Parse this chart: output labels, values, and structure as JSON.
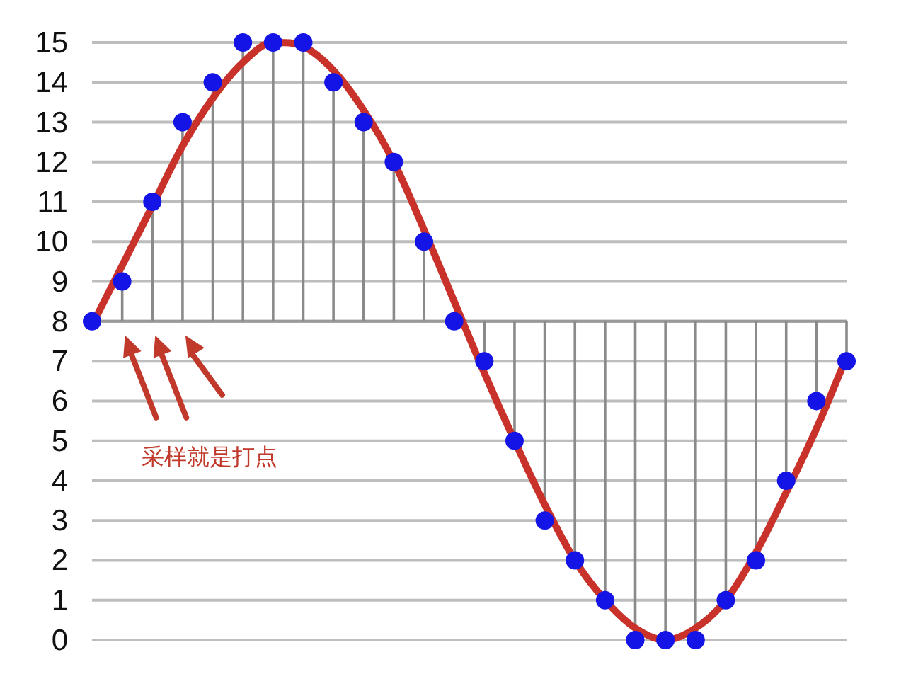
{
  "chart_data": {
    "type": "lollipop",
    "categories": [
      null,
      null,
      null,
      null,
      null,
      null,
      null,
      null,
      null,
      null,
      null,
      null,
      null,
      null,
      null,
      null,
      null,
      null,
      null,
      null,
      null,
      null,
      null,
      null,
      null,
      null
    ],
    "ylim": [
      0,
      15
    ],
    "yticks": [
      0,
      1,
      2,
      3,
      4,
      5,
      6,
      7,
      8,
      9,
      10,
      11,
      12,
      13,
      14,
      15
    ],
    "tick_labels": "y",
    "grid": "y",
    "ref_lines": [
      {
        "axis": "y",
        "value": 8,
        "color": "#999999"
      }
    ],
    "annotations": [
      "采样就是打点"
    ],
    "series": [
      {
        "type": "line",
        "color": "#c8322a",
        "values": [
          7.9,
          9.4,
          10.9,
          12.4,
          13.6,
          14.5,
          15,
          14.9,
          14.3,
          13.3,
          12,
          10.3,
          8.5,
          6.7,
          5,
          3.4,
          2,
          1,
          0.3,
          0,
          0.3,
          1,
          2.2,
          3.7,
          5.3,
          7.1
        ]
      },
      {
        "color": "#1414e6",
        "marker": "circle",
        "values": [
          8,
          9,
          11,
          13,
          14,
          15,
          15,
          15,
          14,
          13,
          12,
          10,
          8,
          7,
          5,
          3,
          2,
          1,
          0,
          0,
          0,
          1,
          2,
          4,
          6,
          7
        ],
        "errors": [
          [
            8,
            8
          ],
          [
            8,
            9
          ],
          [
            8,
            11
          ],
          [
            8,
            13
          ],
          [
            8,
            14
          ],
          [
            8,
            15
          ],
          [
            8,
            15
          ],
          [
            8,
            15
          ],
          [
            8,
            14
          ],
          [
            8,
            13
          ],
          [
            8,
            12
          ],
          [
            8,
            10
          ],
          [
            8,
            8
          ],
          [
            7,
            8
          ],
          [
            5,
            8
          ],
          [
            3,
            8
          ],
          [
            2,
            8
          ],
          [
            1,
            8
          ],
          [
            0,
            8
          ],
          [
            0,
            8
          ],
          [
            0,
            8
          ],
          [
            1,
            8
          ],
          [
            2,
            8
          ],
          [
            4,
            8
          ],
          [
            6,
            8
          ],
          [
            7,
            8
          ]
        ]
      }
    ]
  }
}
